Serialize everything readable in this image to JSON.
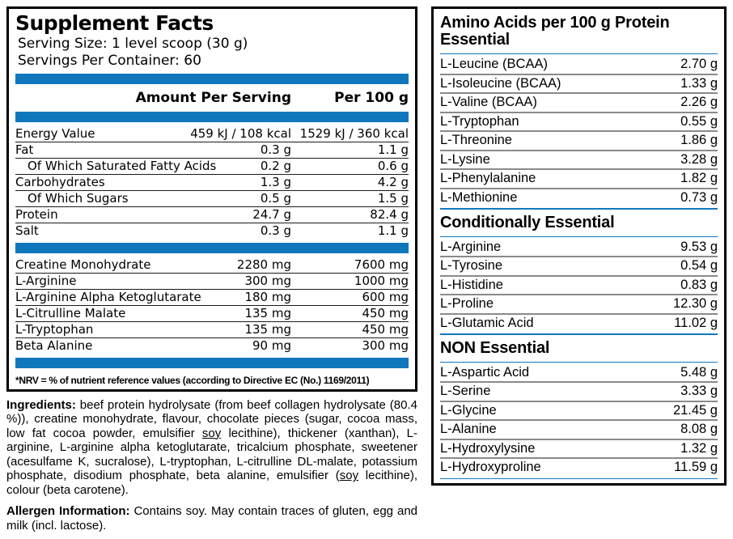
{
  "accent_color": "#1177bd",
  "left_panel": {
    "title": "Supplement Facts",
    "serving_size_label": "Serving Size:",
    "serving_size_value": "1 level scoop (30 g)",
    "servings_per_container_label": "Servings Per Container:",
    "servings_per_container_value": "60",
    "columns": {
      "amount": "Amount Per Serving",
      "per100": "Per 100 g"
    },
    "nutrition_rows": [
      {
        "label": "Energy Value",
        "amount": "459 kJ / 108 kcal",
        "per100": "1529 kJ / 360 kcal"
      },
      {
        "label": "Fat",
        "amount": "0.3 g",
        "per100": "1.1 g"
      },
      {
        "label": "Of Which Saturated Fatty Acids",
        "amount": "0.2 g",
        "per100": "0.6 g",
        "indent": true
      },
      {
        "label": "Carbohydrates",
        "amount": "1.3 g",
        "per100": "4.2 g"
      },
      {
        "label": "Of Which Sugars",
        "amount": "0.5 g",
        "per100": "1.5 g",
        "indent": true
      },
      {
        "label": "Protein",
        "amount": "24.7 g",
        "per100": "82.4 g"
      },
      {
        "label": "Salt",
        "amount": "0.3 g",
        "per100": "1.1 g"
      }
    ],
    "active_rows": [
      {
        "label": "Creatine Monohydrate",
        "amount": "2280 mg",
        "per100": "7600 mg"
      },
      {
        "label": "L-Arginine",
        "amount": "300 mg",
        "per100": "1000 mg"
      },
      {
        "label": "L-Arginine Alpha Ketoglutarate",
        "amount": "180 mg",
        "per100": "600 mg"
      },
      {
        "label": "L-Citrulline Malate",
        "amount": "135 mg",
        "per100": "450 mg"
      },
      {
        "label": "L-Tryptophan",
        "amount": "135 mg",
        "per100": "450 mg"
      },
      {
        "label": "Beta Alanine",
        "amount": "90 mg",
        "per100": "300 mg"
      }
    ],
    "footnote": "*NRV = % of nutrient reference values (according to Directive EC (No.) 1169/2011)"
  },
  "ingredients": {
    "segments": [
      {
        "t": "Ingredients:",
        "b": true
      },
      {
        "t": " beef protein hydrolysate (from beef collagen hydrolysate (80.4 %)), creatine monohydrate, flavour, chocolate pieces (sugar, cocoa mass, low fat cocoa powder, emulsifier "
      },
      {
        "t": "soy",
        "u": true
      },
      {
        "t": " lecithine), thickener (xanthan), L-arginine, L-arginine alpha ketoglutarate, tricalcium phosphate, sweetener (acesulfame K, sucralose), L-tryptophan, L-citrulline DL-malate, potassium phosphate, disodium phosphate, beta alanine, emulsifier ("
      },
      {
        "t": "soy",
        "u": true
      },
      {
        "t": " lecithine), colour (beta carotene)."
      }
    ]
  },
  "allergen": {
    "segments": [
      {
        "t": "Allergen Information:",
        "b": true
      },
      {
        "t": " Contains soy. May contain traces of gluten, egg and milk (incl. lactose)."
      }
    ]
  },
  "right_panel": {
    "title_line1": "Amino Acids per 100 g Protein",
    "title_line2": "Essential",
    "section2_heading": "Conditionally Essential",
    "section3_heading": "NON Essential",
    "essential_rows": [
      {
        "name": "L-Leucine (BCAA)",
        "value": "2.70 g"
      },
      {
        "name": "L-Isoleucine (BCAA)",
        "value": "1.33 g"
      },
      {
        "name": "L-Valine (BCAA)",
        "value": "2.26 g"
      },
      {
        "name": "L-Tryptophan",
        "value": "0.55 g"
      },
      {
        "name": "L-Threonine",
        "value": "1.86 g"
      },
      {
        "name": "L-Lysine",
        "value": "3.28 g"
      },
      {
        "name": "L-Phenylalanine",
        "value": "1.82 g"
      },
      {
        "name": "L-Methionine",
        "value": "0.73 g"
      }
    ],
    "conditionally_essential_rows": [
      {
        "name": "L-Arginine",
        "value": "9.53 g"
      },
      {
        "name": "L-Tyrosine",
        "value": "0.54 g"
      },
      {
        "name": "L-Histidine",
        "value": "0.83 g"
      },
      {
        "name": "L-Proline",
        "value": "12.30 g"
      },
      {
        "name": "L-Glutamic Acid",
        "value": "11.02 g"
      }
    ],
    "non_essential_rows": [
      {
        "name": "L-Aspartic Acid",
        "value": "5.48 g"
      },
      {
        "name": "L-Serine",
        "value": "3.33 g"
      },
      {
        "name": "L-Glycine",
        "value": "21.45 g"
      },
      {
        "name": "L-Alanine",
        "value": "8.08 g"
      },
      {
        "name": "L-Hydroxylysine",
        "value": "1.32 g"
      },
      {
        "name": "L-Hydroxyproline",
        "value": "11.59 g"
      }
    ]
  }
}
